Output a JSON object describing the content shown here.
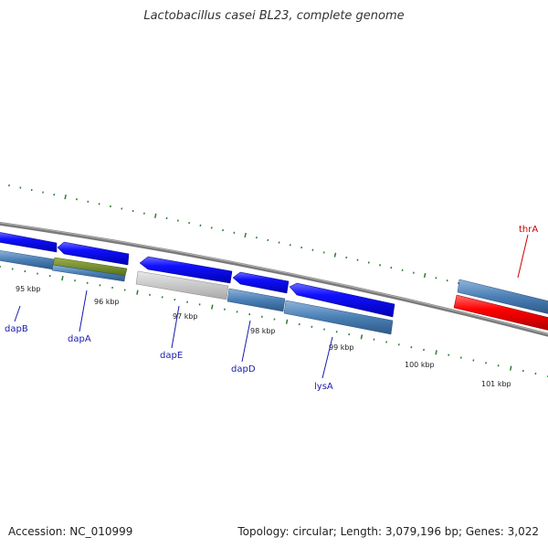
{
  "header": {
    "title": "Lactobacillus casei BL23, complete genome"
  },
  "footer": {
    "accession": "Accession: NC_010999",
    "summary": "Topology: circular; Length: 3,079,196 bp; Genes: 3,022"
  },
  "ticks": [
    "95 kbp",
    "96 kbp",
    "97 kbp",
    "98 kbp",
    "99 kbp",
    "100 kbp",
    "101 kbp"
  ],
  "genes": [
    {
      "name": "dapB",
      "color": "#1a1ab0"
    },
    {
      "name": "dapA",
      "color": "#1a1ab0"
    },
    {
      "name": "dapE",
      "color": "#1a1ab0"
    },
    {
      "name": "dapD",
      "color": "#1a1ab0"
    },
    {
      "name": "lysA",
      "color": "#1a1ab0"
    },
    {
      "name": "thrA",
      "color": "#cc0000"
    }
  ],
  "colors": {
    "backbone": "#808080",
    "tick_marks": "#2e7d32",
    "cds_forward": "#0000ee",
    "cds_reverse_steel": "#4a7fb5",
    "highlight_olive": "#6b8e23",
    "rna_grey": "#c8c8c8",
    "highlight_red": "#ff0000"
  }
}
